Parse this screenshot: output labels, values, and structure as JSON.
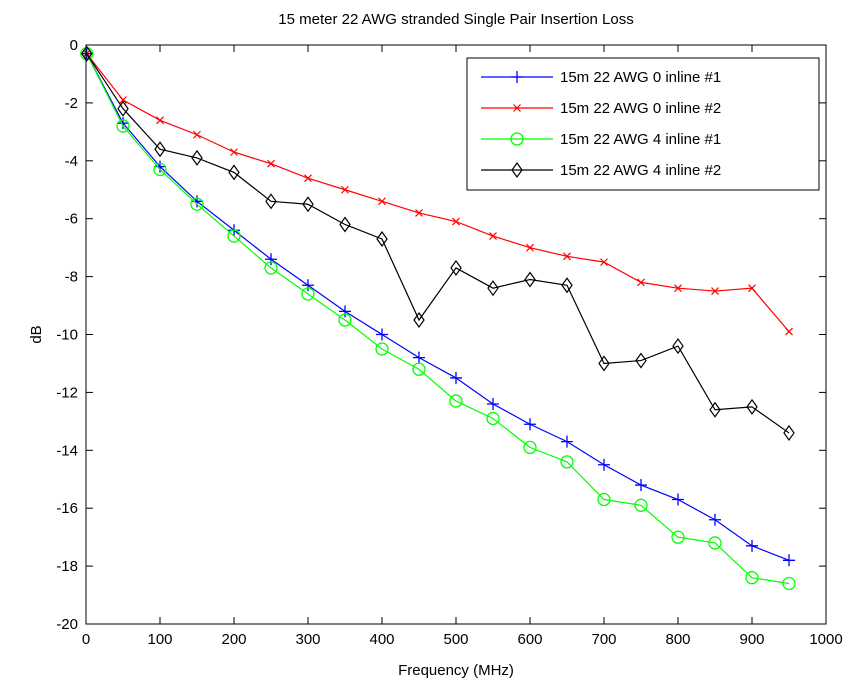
{
  "chart_data": {
    "type": "line",
    "title": "15 meter 22 AWG stranded Single Pair Insertion Loss",
    "xlabel": "Frequency (MHz)",
    "ylabel": "dB",
    "xlim": [
      0,
      1000
    ],
    "ylim": [
      -20,
      0
    ],
    "xticks": [
      0,
      100,
      200,
      300,
      400,
      500,
      600,
      700,
      800,
      900,
      1000
    ],
    "yticks": [
      0,
      -2,
      -4,
      -6,
      -8,
      -10,
      -12,
      -14,
      -16,
      -18,
      -20
    ],
    "grid": false,
    "legend_position": "top-right",
    "x": [
      1,
      50,
      100,
      150,
      200,
      250,
      300,
      350,
      400,
      450,
      500,
      550,
      600,
      650,
      700,
      750,
      800,
      850,
      900,
      950
    ],
    "series": [
      {
        "name": "15m 22 AWG 0 inline #1",
        "color": "#0000ff",
        "marker": "plus",
        "values": [
          -0.3,
          -2.7,
          -4.2,
          -5.4,
          -6.4,
          -7.4,
          -8.3,
          -9.2,
          -10.0,
          -10.8,
          -11.5,
          -12.4,
          -13.1,
          -13.7,
          -14.5,
          -15.2,
          -15.7,
          -16.4,
          -17.3,
          -17.8
        ]
      },
      {
        "name": "15m 22 AWG 0 inline #2",
        "color": "#ff0000",
        "marker": "x",
        "values": [
          -0.3,
          -1.9,
          -2.6,
          -3.1,
          -3.7,
          -4.1,
          -4.6,
          -5.0,
          -5.4,
          -5.8,
          -6.1,
          -6.6,
          -7.0,
          -7.3,
          -7.5,
          -8.2,
          -8.4,
          -8.5,
          -8.4,
          -9.9
        ]
      },
      {
        "name": "15m 22 AWG 4 inline #1",
        "color": "#00ff00",
        "marker": "circle",
        "values": [
          -0.3,
          -2.8,
          -4.3,
          -5.5,
          -6.6,
          -7.7,
          -8.6,
          -9.5,
          -10.5,
          -11.2,
          -12.3,
          -12.9,
          -13.9,
          -14.4,
          -15.7,
          -15.9,
          -17.0,
          -17.2,
          -18.4,
          -18.6
        ]
      },
      {
        "name": "15m 22 AWG 4 inline #2",
        "color": "#000000",
        "marker": "diamond",
        "values": [
          -0.3,
          -2.2,
          -3.6,
          -3.9,
          -4.4,
          -5.4,
          -5.5,
          -6.2,
          -6.7,
          -9.5,
          -7.7,
          -8.4,
          -8.1,
          -8.3,
          -11.0,
          -10.9,
          -10.4,
          -12.6,
          -12.5,
          -13.4
        ]
      }
    ]
  }
}
